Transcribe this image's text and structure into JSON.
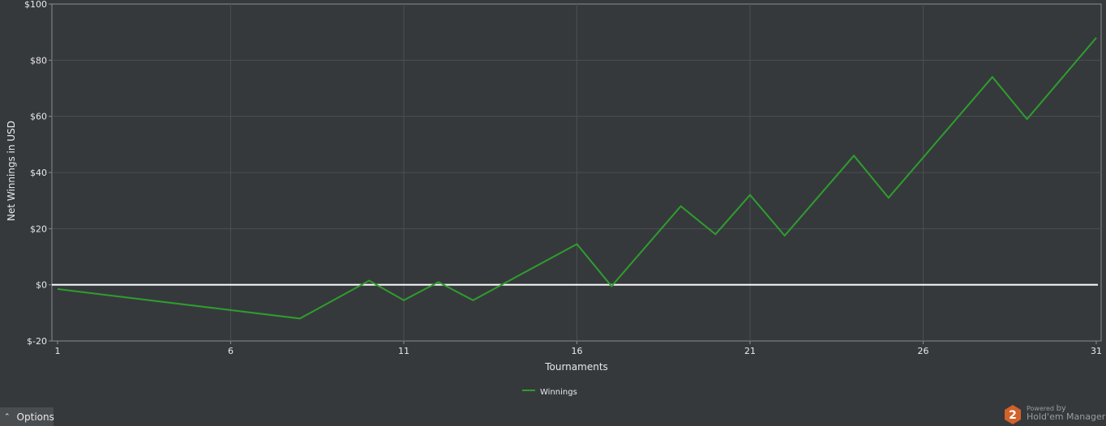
{
  "chart_data": {
    "type": "line",
    "xlabel": "Tournaments",
    "ylabel": "Net Winnings in USD",
    "xlim": [
      1,
      31
    ],
    "ylim": [
      -20,
      100
    ],
    "x_ticks": [
      1,
      6,
      11,
      16,
      21,
      26,
      31
    ],
    "y_ticks": [
      -20,
      0,
      20,
      40,
      60,
      80,
      100
    ],
    "y_tick_labels": [
      "$-20",
      "$0",
      "$20",
      "$40",
      "$60",
      "$80",
      "$100"
    ],
    "grid": true,
    "legend_position": "bottom-center",
    "series": [
      {
        "name": "Winnings",
        "color": "#2e9e2e",
        "x": [
          1,
          8,
          10,
          11,
          12,
          13,
          16,
          17,
          19,
          20,
          21,
          22,
          24,
          25,
          28,
          29,
          31
        ],
        "y": [
          -1.5,
          -12,
          1.5,
          -5.5,
          1,
          -5.5,
          14.5,
          -0.5,
          28,
          18,
          32,
          17.5,
          46,
          31,
          74,
          59,
          88
        ]
      }
    ],
    "zero_line_color": "#ffffff"
  },
  "controls": {
    "options_label": "Options",
    "options_icon": "chevron-up-icon"
  },
  "branding": {
    "powered_label": "Powered",
    "by_label": "by",
    "brand_name": "Hold'em Manager",
    "logo_digit": "2",
    "logo_color": "#d2622a"
  }
}
